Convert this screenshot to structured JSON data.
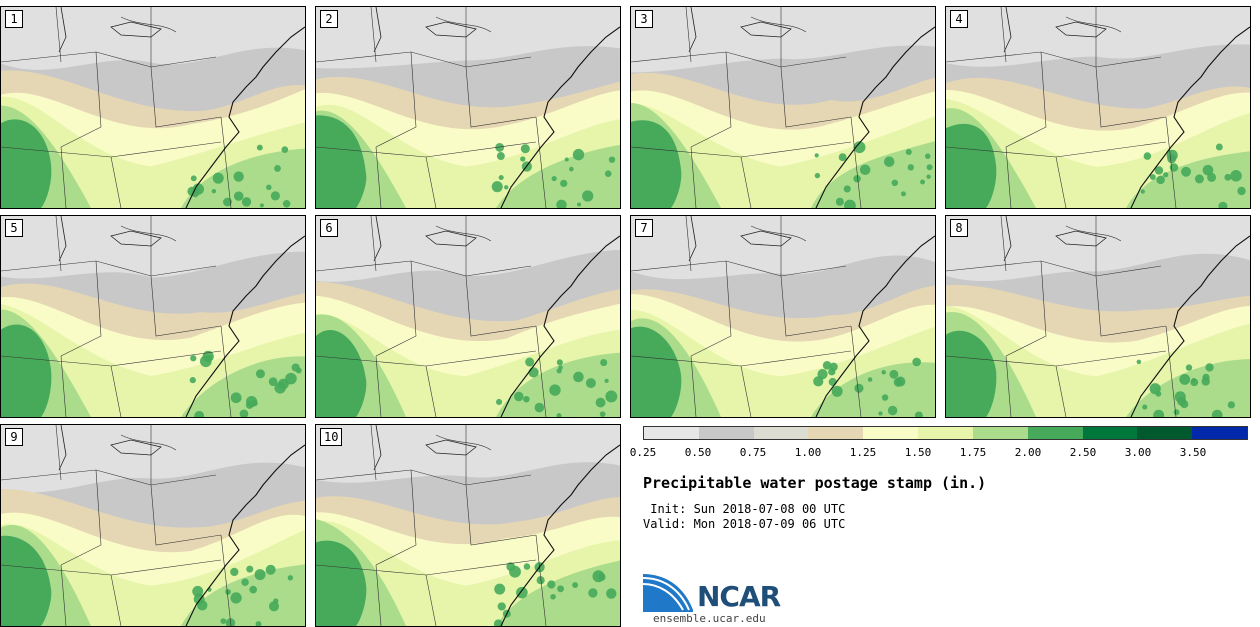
{
  "stamps": [
    {
      "label": "1"
    },
    {
      "label": "2"
    },
    {
      "label": "3"
    },
    {
      "label": "4"
    },
    {
      "label": "5"
    },
    {
      "label": "6"
    },
    {
      "label": "7"
    },
    {
      "label": "8"
    },
    {
      "label": "9"
    },
    {
      "label": "10"
    }
  ],
  "colorbar": {
    "colors": [
      "#e6e6e6",
      "#c8c8c8",
      "#dcdcd2",
      "#e6d7b4",
      "#fafcc8",
      "#e6f5aa",
      "#aadc8c",
      "#46aa5a",
      "#00783c",
      "#005a2d",
      "#0028aa"
    ],
    "ticks": [
      "0.25",
      "0.50",
      "0.75",
      "1.00",
      "1.25",
      "1.50",
      "1.75",
      "2.00",
      "2.50",
      "3.00",
      "3.50"
    ]
  },
  "title": "Precipitable water postage stamp (in.)",
  "init_line": " Init: Sun 2018-07-08 00 UTC",
  "valid_line": "Valid: Mon 2018-07-09 06 UTC",
  "logo": {
    "text": "NCAR",
    "url": "ensemble.ucar.edu"
  }
}
